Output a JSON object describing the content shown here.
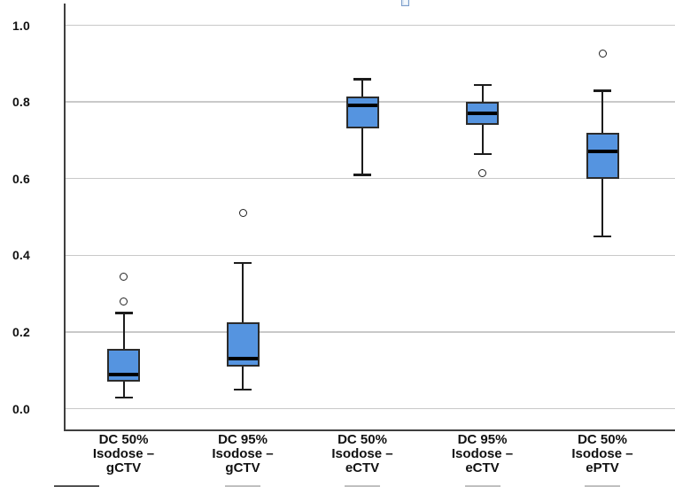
{
  "figure": {
    "kind": "boxplot-figure",
    "background": "#FFFFFF"
  },
  "colors": {
    "box_fill": "#5594E0",
    "box_border": "#2B2B2B",
    "median": "#000000",
    "whisker": "#1C1C1C",
    "outlier_stroke": "#222222",
    "grid": "#C9C9C9",
    "axis": "#3F3F3F",
    "text": "#111111",
    "icon_border": "#7B9CC9",
    "icon_fill": "#DCE8F5"
  },
  "chart_data": {
    "type": "boxplot",
    "title": "",
    "xlabel": "",
    "ylabel": "",
    "ylim": [
      -0.05,
      1.05
    ],
    "grid": "horizontal",
    "legend": "none",
    "yticks": [
      0.0,
      0.2,
      0.4,
      0.6,
      0.8,
      1.0
    ],
    "ytick_labels": [
      "0.0",
      "0.2",
      "0.4",
      "0.6",
      "0.8",
      "1.0"
    ],
    "categories": [
      {
        "label": "DC 50% Isodose – gCTV",
        "label_lines": [
          "DC 50%",
          "Isodose –",
          "gCTV"
        ],
        "whisker_low": 0.03,
        "q1": 0.07,
        "median": 0.09,
        "q3": 0.155,
        "whisker_high": 0.25,
        "outliers": [
          0.28,
          0.345
        ]
      },
      {
        "label": "DC 95% Isodose – gCTV",
        "label_lines": [
          "DC 95%",
          "Isodose –",
          "gCTV"
        ],
        "whisker_low": 0.05,
        "q1": 0.11,
        "median": 0.13,
        "q3": 0.225,
        "whisker_high": 0.38,
        "outliers": [
          0.51
        ]
      },
      {
        "label": "DC 50% Isodose – eCTV",
        "label_lines": [
          "DC 50%",
          "Isodose –",
          "eCTV"
        ],
        "whisker_low": 0.61,
        "q1": 0.73,
        "median": 0.79,
        "q3": 0.815,
        "whisker_high": 0.86,
        "outliers": []
      },
      {
        "label": "DC 95% Isodose – eCTV",
        "label_lines": [
          "DC 95%",
          "Isodose –",
          "eCTV"
        ],
        "whisker_low": 0.665,
        "q1": 0.74,
        "median": 0.77,
        "q3": 0.8,
        "whisker_high": 0.845,
        "outliers": [
          0.615
        ]
      },
      {
        "label": "DC 50% Isodose – ePTV",
        "label_lines": [
          "DC 50%",
          "Isodose –",
          "ePTV"
        ],
        "whisker_low": 0.45,
        "q1": 0.6,
        "median": 0.67,
        "q3": 0.72,
        "whisker_high": 0.83,
        "outliers": [
          0.925
        ]
      }
    ]
  }
}
